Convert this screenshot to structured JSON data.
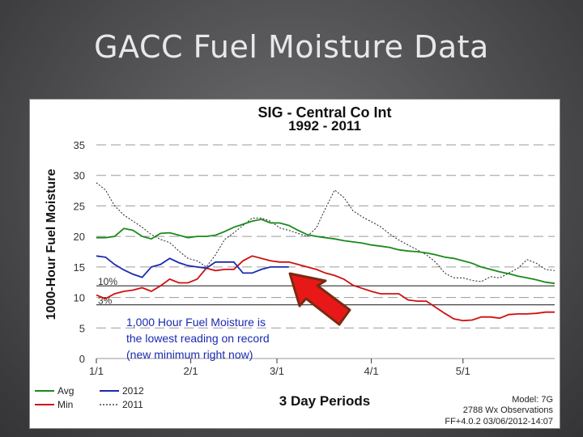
{
  "slide": {
    "title": "GACC Fuel Moisture Data"
  },
  "chart_data": {
    "type": "line",
    "title": "SIG - Central Co Int",
    "subtitle": "1992 - 2011",
    "xlabel": "3 Day Periods",
    "ylabel": "1000-Hour Fuel Moisture",
    "ylim": [
      0,
      35
    ],
    "yticks": [
      0,
      5,
      10,
      15,
      20,
      25,
      30,
      35
    ],
    "xticks": [
      {
        "label": "1/1",
        "period": 0
      },
      {
        "label": "2/1",
        "period": 10.3
      },
      {
        "label": "3/1",
        "period": 19.7
      },
      {
        "label": "4/1",
        "period": 30
      },
      {
        "label": "5/1",
        "period": 40
      }
    ],
    "grid": "dashed horizontal",
    "thresholds": [
      {
        "value": 11.9,
        "label": "10%"
      },
      {
        "value": 8.8,
        "label": "3%"
      }
    ],
    "series": [
      {
        "name": "Avg",
        "color": "#1a8a1a",
        "style": "solid",
        "x": [
          0,
          1,
          2,
          3,
          4,
          5,
          6,
          7,
          8,
          9,
          10,
          11,
          12,
          13,
          14,
          15,
          16,
          17,
          18,
          19,
          20,
          21,
          22,
          23,
          24,
          25,
          26,
          27,
          28,
          29,
          30,
          31,
          32,
          33,
          34,
          35,
          36,
          37,
          38,
          39,
          40,
          41,
          42,
          43,
          44,
          45,
          46,
          47,
          48,
          49,
          50
        ],
        "y": [
          19.8,
          19.8,
          20,
          21.3,
          21,
          20,
          19.6,
          20.5,
          20.6,
          20.2,
          19.8,
          20,
          20,
          20.2,
          20.8,
          21.5,
          22,
          22.5,
          22.8,
          22.2,
          22.2,
          21.8,
          21,
          20.3,
          20,
          19.8,
          19.6,
          19.3,
          19.1,
          18.9,
          18.6,
          18.4,
          18.2,
          17.8,
          17.6,
          17.5,
          17.3,
          17,
          16.6,
          16.4,
          16,
          15.6,
          15,
          14.6,
          14.2,
          13.9,
          13.5,
          13.2,
          12.9,
          12.5,
          12.3
        ]
      },
      {
        "name": "Min",
        "color": "#d01010",
        "style": "solid",
        "x": [
          0,
          1,
          2,
          3,
          4,
          5,
          6,
          7,
          8,
          9,
          10,
          11,
          12,
          13,
          14,
          15,
          16,
          17,
          18,
          19,
          20,
          21,
          22,
          23,
          24,
          25,
          26,
          27,
          28,
          29,
          30,
          31,
          32,
          33,
          34,
          35,
          36,
          37,
          38,
          39,
          40,
          41,
          42,
          43,
          44,
          45,
          46,
          47,
          48,
          49,
          50
        ],
        "y": [
          10.4,
          9.8,
          10.6,
          11,
          11.2,
          11.6,
          11,
          11.9,
          13,
          12.4,
          12.4,
          13,
          14.8,
          14.4,
          14.6,
          14.6,
          16,
          16.8,
          16.4,
          16,
          15.8,
          15.8,
          15.4,
          15,
          14.6,
          14,
          13.6,
          13,
          12,
          11.5,
          11,
          10.6,
          10.6,
          10.6,
          9.6,
          9.4,
          9.4,
          8.4,
          7.4,
          6.5,
          6.2,
          6.3,
          6.8,
          6.8,
          6.6,
          7.2,
          7.3,
          7.3,
          7.4,
          7.6,
          7.6
        ]
      },
      {
        "name": "2012",
        "color": "#1a2ab0",
        "style": "solid",
        "x": [
          0,
          1,
          2,
          3,
          4,
          5,
          6,
          7,
          8,
          9,
          10,
          11,
          12,
          13,
          14,
          15,
          16,
          17,
          18,
          19,
          20,
          21
        ],
        "y": [
          16.8,
          16.6,
          15.4,
          14.5,
          13.8,
          13.3,
          15,
          15.4,
          16.4,
          15.7,
          15.2,
          15,
          14.8,
          15.8,
          15.8,
          15.8,
          14,
          14,
          14.6,
          15,
          15,
          15
        ]
      },
      {
        "name": "2011",
        "color": "#222222",
        "style": "dotted",
        "x": [
          0,
          1,
          2,
          3,
          4,
          5,
          6,
          7,
          8,
          9,
          10,
          11,
          12,
          13,
          14,
          15,
          16,
          17,
          18,
          19,
          20,
          21,
          22,
          23,
          24,
          25,
          26,
          27,
          28,
          29,
          30,
          31,
          32,
          33,
          34,
          35,
          36,
          37,
          38,
          39,
          40,
          41,
          42,
          43,
          44,
          45,
          46,
          47,
          48,
          49,
          50
        ],
        "y": [
          28.8,
          27.6,
          25,
          23.5,
          22.5,
          21.5,
          20.3,
          19.5,
          19,
          17.6,
          16.4,
          16,
          15,
          17,
          19.5,
          20.6,
          21.8,
          23,
          23,
          22.5,
          21.4,
          21,
          20.5,
          20,
          21.4,
          24.6,
          27.6,
          26.4,
          24.2,
          23.2,
          22.4,
          21.6,
          20.4,
          19.4,
          18.6,
          17.8,
          17,
          15.8,
          14,
          13.2,
          13.2,
          12.8,
          12.6,
          13.4,
          13.2,
          14,
          14.8,
          16.2,
          15.6,
          14.6,
          14.4
        ]
      }
    ],
    "legend": {
      "placement": "bottom-left",
      "items": [
        {
          "name": "Avg",
          "color": "#1a8a1a",
          "style": "solid"
        },
        {
          "name": "2012",
          "color": "#1a2ab0",
          "style": "solid"
        },
        {
          "name": "Min",
          "color": "#d01010",
          "style": "solid"
        },
        {
          "name": "2011",
          "color": "#222222",
          "style": "dotted"
        }
      ]
    },
    "annotation": {
      "lines": [
        "1,000 Hour Fuel Moisture is",
        "the lowest reading on record",
        "(new minimum right now)"
      ],
      "color": "#1a2ab0"
    },
    "footer": {
      "model": "Model: 7G",
      "observations": "2788 Wx Observations",
      "version": "FF+4.0.2 03/06/2012-14:07"
    },
    "callout_arrow": {
      "color": "#e81818",
      "points_to_period": 20
    }
  }
}
